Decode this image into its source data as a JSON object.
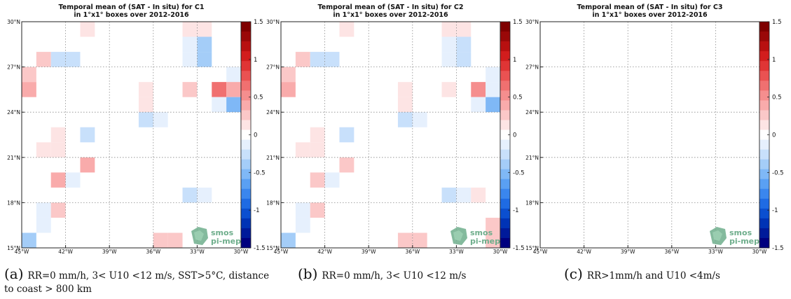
{
  "chart_data": [
    {
      "type": "heatmap",
      "title": "Temporal mean of (SAT - In situ) for C1",
      "subtitle": "in 1°x1° boxes over 2012-2016",
      "xlim": [
        -45,
        -30
      ],
      "ylim": [
        15,
        30
      ],
      "xticks": [
        -45,
        -42,
        -39,
        -36,
        -33,
        -30
      ],
      "xticklabels": [
        "45°W",
        "42°W",
        "39°W",
        "36°W",
        "33°W",
        "30°W"
      ],
      "yticks": [
        15,
        18,
        21,
        24,
        27,
        30
      ],
      "yticklabels": [
        "15°N",
        "18°N",
        "21°N",
        "24°N",
        "27°N",
        "30°N"
      ],
      "grid": true,
      "colorbar": {
        "range": [
          -1.5,
          1.5
        ],
        "ticks": [
          1.5,
          1,
          0.5,
          0,
          -0.5,
          -1,
          -1.5
        ],
        "ticklabels": [
          "1.5",
          "1",
          "0.5",
          "0",
          "-0.5",
          "-1",
          "-1.5"
        ]
      },
      "cells": [
        {
          "lon": -41,
          "lat": 29,
          "value": 0.15
        },
        {
          "lon": -34,
          "lat": 29,
          "value": 0.15
        },
        {
          "lon": -33,
          "lat": 29,
          "value": 0.15
        },
        {
          "lon": -34,
          "lat": 28,
          "value": -0.15
        },
        {
          "lon": -33,
          "lat": 28,
          "value": -0.35
        },
        {
          "lon": -44,
          "lat": 27,
          "value": 0.2
        },
        {
          "lon": -43,
          "lat": 27,
          "value": -0.25
        },
        {
          "lon": -42,
          "lat": 27,
          "value": -0.25
        },
        {
          "lon": -34,
          "lat": 27,
          "value": -0.15
        },
        {
          "lon": -33,
          "lat": 27,
          "value": -0.35
        },
        {
          "lon": -45,
          "lat": 26,
          "value": 0.2
        },
        {
          "lon": -31,
          "lat": 26,
          "value": -0.15
        },
        {
          "lon": -45,
          "lat": 25,
          "value": 0.35
        },
        {
          "lon": -37,
          "lat": 25,
          "value": 0.15
        },
        {
          "lon": -34,
          "lat": 25,
          "value": 0.2
        },
        {
          "lon": -32,
          "lat": 25,
          "value": 0.6
        },
        {
          "lon": -31,
          "lat": 25,
          "value": 0.35
        },
        {
          "lon": -37,
          "lat": 24,
          "value": 0.15
        },
        {
          "lon": -32,
          "lat": 24,
          "value": -0.15
        },
        {
          "lon": -31,
          "lat": 24,
          "value": -0.5
        },
        {
          "lon": -37,
          "lat": 23,
          "value": -0.3
        },
        {
          "lon": -36,
          "lat": 23,
          "value": -0.15
        },
        {
          "lon": -43,
          "lat": 22,
          "value": 0.15
        },
        {
          "lon": -41,
          "lat": 22,
          "value": -0.3
        },
        {
          "lon": -44,
          "lat": 21,
          "value": 0.15
        },
        {
          "lon": -43,
          "lat": 21,
          "value": 0.15
        },
        {
          "lon": -41,
          "lat": 20,
          "value": 0.35
        },
        {
          "lon": -43,
          "lat": 19,
          "value": 0.35
        },
        {
          "lon": -42,
          "lat": 19,
          "value": -0.15
        },
        {
          "lon": -34,
          "lat": 18,
          "value": -0.3
        },
        {
          "lon": -33,
          "lat": 18,
          "value": -0.15
        },
        {
          "lon": -44,
          "lat": 17,
          "value": -0.15
        },
        {
          "lon": -43,
          "lat": 17,
          "value": 0.2
        },
        {
          "lon": -44,
          "lat": 16,
          "value": -0.15
        },
        {
          "lon": -45,
          "lat": 15,
          "value": -0.35
        },
        {
          "lon": -36,
          "lat": 15,
          "value": 0.3
        },
        {
          "lon": -35,
          "lat": 15,
          "value": 0.3
        }
      ]
    },
    {
      "type": "heatmap",
      "title": "Temporal mean of (SAT - In situ) for C2",
      "subtitle": "in 1°x1° boxes over 2012-2016",
      "xlim": [
        -45,
        -30
      ],
      "ylim": [
        15,
        30
      ],
      "xticks": [
        -45,
        -42,
        -39,
        -36,
        -33,
        -30
      ],
      "xticklabels": [
        "45°W",
        "42°W",
        "39°W",
        "36°W",
        "33°W",
        "30°W"
      ],
      "yticks": [
        15,
        18,
        21,
        24,
        27,
        30
      ],
      "yticklabels": [
        "15°N",
        "18°N",
        "21°N",
        "24°N",
        "27°N",
        "30°N"
      ],
      "grid": true,
      "colorbar": {
        "range": [
          -1.5,
          1.5
        ],
        "ticks": [
          1.5,
          1,
          0.5,
          0,
          -0.5,
          -1,
          -1.5
        ],
        "ticklabels": [
          "1.5",
          "1",
          "0.5",
          "0",
          "-0.5",
          "-1",
          "-1.5"
        ]
      },
      "cells": [
        {
          "lon": -41,
          "lat": 29,
          "value": 0.15
        },
        {
          "lon": -34,
          "lat": 29,
          "value": 0.15
        },
        {
          "lon": -33,
          "lat": 29,
          "value": 0.15
        },
        {
          "lon": -34,
          "lat": 28,
          "value": -0.15
        },
        {
          "lon": -33,
          "lat": 28,
          "value": -0.3
        },
        {
          "lon": -44,
          "lat": 27,
          "value": 0.2
        },
        {
          "lon": -43,
          "lat": 27,
          "value": -0.25
        },
        {
          "lon": -42,
          "lat": 27,
          "value": -0.25
        },
        {
          "lon": -34,
          "lat": 27,
          "value": -0.15
        },
        {
          "lon": -33,
          "lat": 27,
          "value": -0.3
        },
        {
          "lon": -45,
          "lat": 26,
          "value": 0.2
        },
        {
          "lon": -31,
          "lat": 26,
          "value": -0.15
        },
        {
          "lon": -45,
          "lat": 25,
          "value": 0.35
        },
        {
          "lon": -37,
          "lat": 25,
          "value": 0.15
        },
        {
          "lon": -34,
          "lat": 25,
          "value": 0.15
        },
        {
          "lon": -32,
          "lat": 25,
          "value": 0.55
        },
        {
          "lon": -31,
          "lat": 25,
          "value": -0.15
        },
        {
          "lon": -37,
          "lat": 24,
          "value": 0.15
        },
        {
          "lon": -32,
          "lat": 24,
          "value": -0.15
        },
        {
          "lon": -31,
          "lat": 24,
          "value": -0.45
        },
        {
          "lon": -37,
          "lat": 23,
          "value": -0.3
        },
        {
          "lon": -36,
          "lat": 23,
          "value": -0.15
        },
        {
          "lon": -43,
          "lat": 22,
          "value": 0.15
        },
        {
          "lon": -41,
          "lat": 22,
          "value": -0.3
        },
        {
          "lon": -44,
          "lat": 21,
          "value": 0.15
        },
        {
          "lon": -43,
          "lat": 21,
          "value": 0.15
        },
        {
          "lon": -41,
          "lat": 20,
          "value": 0.3
        },
        {
          "lon": -43,
          "lat": 19,
          "value": 0.3
        },
        {
          "lon": -42,
          "lat": 19,
          "value": -0.15
        },
        {
          "lon": -34,
          "lat": 18,
          "value": -0.3
        },
        {
          "lon": -33,
          "lat": 18,
          "value": -0.15
        },
        {
          "lon": -32,
          "lat": 18,
          "value": 0.15
        },
        {
          "lon": -44,
          "lat": 17,
          "value": -0.15
        },
        {
          "lon": -43,
          "lat": 17,
          "value": 0.2
        },
        {
          "lon": -44,
          "lat": 16,
          "value": -0.15
        },
        {
          "lon": -31,
          "lat": 16,
          "value": 0.3
        },
        {
          "lon": -45,
          "lat": 15,
          "value": -0.35
        },
        {
          "lon": -37,
          "lat": 15,
          "value": 0.3
        },
        {
          "lon": -36,
          "lat": 15,
          "value": 0.3
        },
        {
          "lon": -31,
          "lat": 15,
          "value": 0.3
        }
      ]
    },
    {
      "type": "heatmap",
      "title": "Temporal mean of (SAT - In situ) for C3",
      "subtitle": "in 1°x1° boxes over 2012-2016",
      "xlim": [
        -45,
        -30
      ],
      "ylim": [
        15,
        30
      ],
      "xticks": [
        -45,
        -42,
        -39,
        -36,
        -33,
        -30
      ],
      "xticklabels": [
        "45°W",
        "42°W",
        "39°W",
        "36°W",
        "33°W",
        "30°W"
      ],
      "yticks": [
        15,
        18,
        21,
        24,
        27,
        30
      ],
      "yticklabels": [
        "15°N",
        "18°N",
        "21°N",
        "24°N",
        "27°N",
        "30°N"
      ],
      "grid": true,
      "colorbar": {
        "range": [
          -1.5,
          1.5
        ],
        "ticks": [
          1.5,
          1,
          0.5,
          0,
          -0.5,
          -1,
          -1.5
        ],
        "ticklabels": [
          "1.5",
          "1",
          "0.5",
          "0",
          "-0.5",
          "-1",
          "-1.5"
        ]
      },
      "cells": []
    }
  ],
  "colorbar_colors": {
    "negative": [
      "#00007f",
      "#001a9a",
      "#0033b5",
      "#0b4fd0",
      "#1f6be3",
      "#3a86ee",
      "#5aa0f3",
      "#7fb8f6",
      "#a4cdf8",
      "#c8e0fb",
      "#e6f0fd"
    ],
    "neutral": "#ffffff",
    "positive": [
      "#fde4e4",
      "#fbc8c8",
      "#f9abab",
      "#f58e8e",
      "#f07070",
      "#ea5252",
      "#e03535",
      "#d21d1d",
      "#b81010",
      "#9a0808",
      "#7f0000"
    ]
  },
  "logo": {
    "line1": "smos",
    "line2": "pi-mep",
    "color": "#6fae8c"
  },
  "captions": [
    {
      "label": "(a)",
      "text": "RR=0 mm/h, 3< U10 <12 m/s, SST>5°C, distance to coast > 800 km"
    },
    {
      "label": "(b)",
      "text": "RR=0 mm/h, 3< U10 <12 m/s"
    },
    {
      "label": "(c)",
      "text": "RR>1mm/h and U10 <4m/s"
    }
  ]
}
